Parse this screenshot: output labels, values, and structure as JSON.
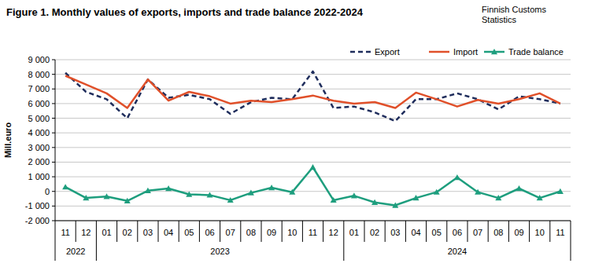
{
  "chart_data": {
    "type": "line",
    "title": "Figure 1. Monthly values of exports, imports and trade balance 2022-2024",
    "source": [
      "Finnish Customs",
      "Statistics"
    ],
    "y_label": "Mill.euro",
    "categories": [
      "11",
      "12",
      "01",
      "02",
      "03",
      "04",
      "05",
      "06",
      "07",
      "08",
      "09",
      "10",
      "11",
      "12",
      "01",
      "02",
      "03",
      "04",
      "05",
      "06",
      "07",
      "08",
      "09",
      "10",
      "11"
    ],
    "groups": [
      {
        "label": "2022",
        "count": 2
      },
      {
        "label": "2023",
        "count": 12
      },
      {
        "label": "2024",
        "count": 11
      }
    ],
    "series": [
      {
        "name": "Export",
        "color": "#1f2d5c",
        "line_style": "dashed",
        "values": [
          8100,
          6800,
          6300,
          5000,
          7650,
          6400,
          6600,
          6300,
          5300,
          6100,
          6400,
          6300,
          8200,
          5700,
          5800,
          5400,
          4800,
          6300,
          6300,
          6700,
          6300,
          5600,
          6500,
          6300,
          6000
        ]
      },
      {
        "name": "Import",
        "color": "#e0502a",
        "line_style": "solid",
        "values": [
          7900,
          7300,
          6700,
          5700,
          7650,
          6200,
          6800,
          6500,
          6000,
          6200,
          6100,
          6300,
          6550,
          6200,
          6000,
          6100,
          5700,
          6750,
          6300,
          5800,
          6250,
          6000,
          6300,
          6700,
          6000
        ]
      },
      {
        "name": "Trade balance",
        "color": "#1e9e7e",
        "line_style": "solid",
        "marker": "triangle",
        "values": [
          300,
          -450,
          -350,
          -650,
          50,
          200,
          -200,
          -250,
          -600,
          -100,
          250,
          -50,
          1650,
          -600,
          -300,
          -750,
          -950,
          -450,
          -50,
          950,
          -50,
          -450,
          200,
          -450,
          0
        ]
      }
    ],
    "ylim": [
      -2000,
      9000
    ],
    "yticks": [
      {
        "value": -2000,
        "label": "-2 000"
      },
      {
        "value": -1000,
        "label": "-1 000"
      },
      0,
      {
        "value": 1000,
        "label": "1 000"
      },
      {
        "value": 2000,
        "label": "2 000"
      },
      {
        "value": 3000,
        "label": "3 000"
      },
      {
        "value": 4000,
        "label": "4 000"
      },
      {
        "value": 5000,
        "label": "5 000"
      },
      {
        "value": 6000,
        "label": "6 000"
      },
      {
        "value": 7000,
        "label": "7 000"
      },
      {
        "value": 8000,
        "label": "8 000"
      },
      {
        "value": 9000,
        "label": "9 000"
      }
    ],
    "grid": true,
    "legend": "top-right"
  }
}
